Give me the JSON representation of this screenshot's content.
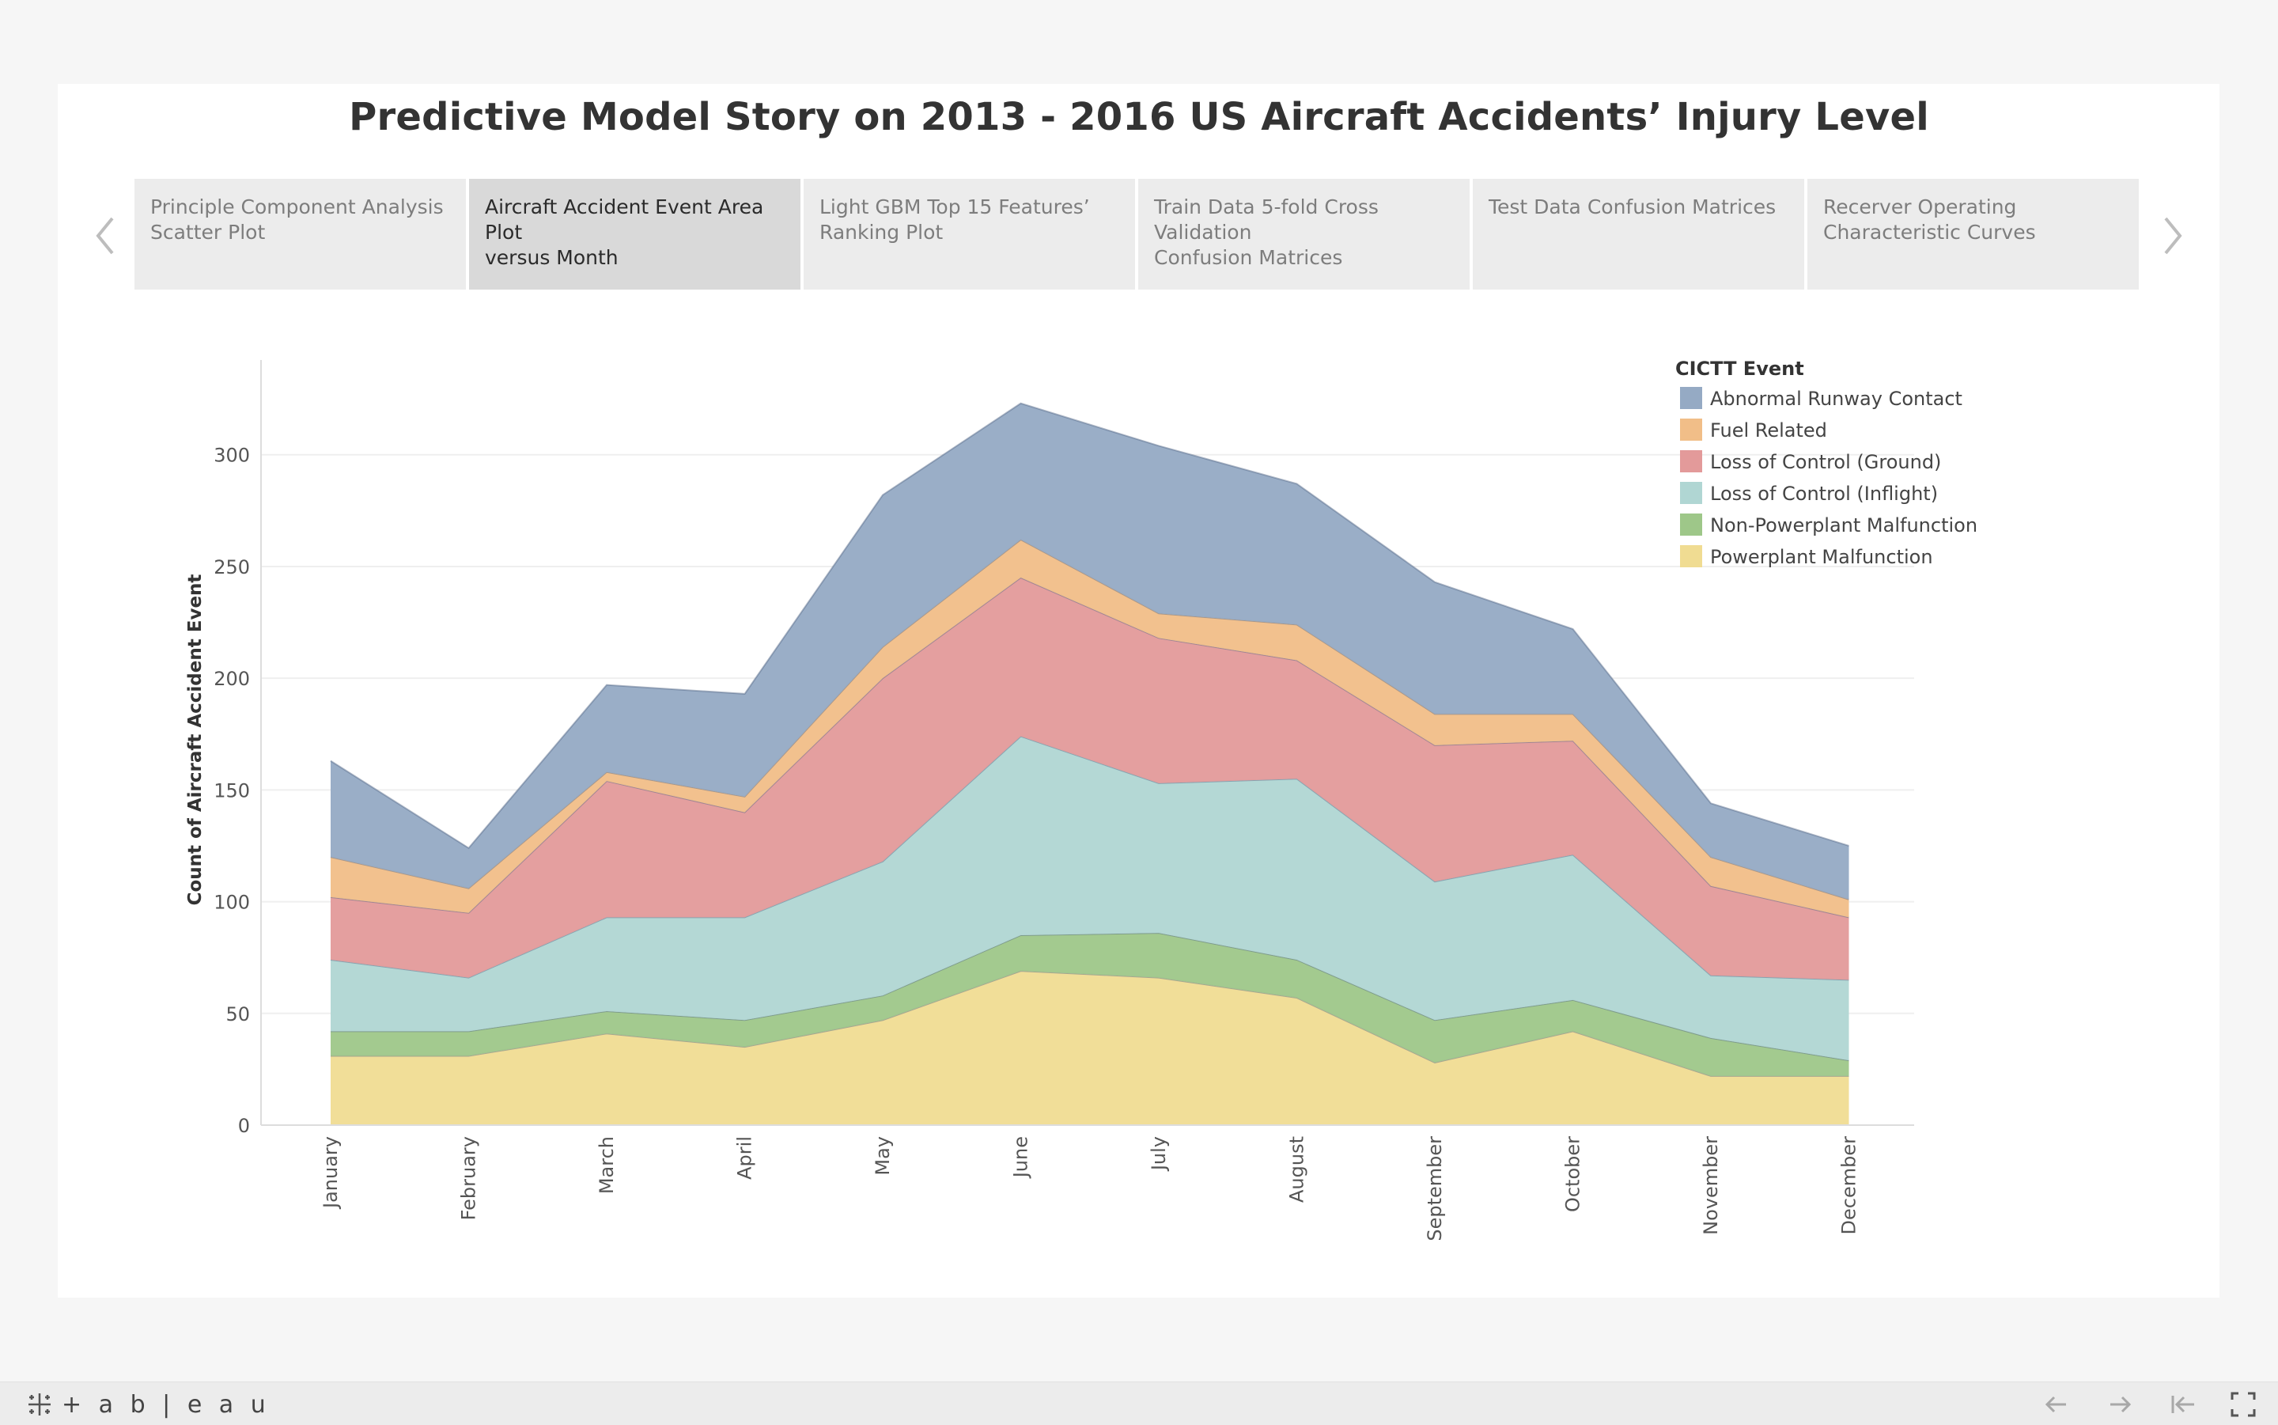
{
  "story": {
    "title": "Predictive Model Story on 2013 - 2016 US Aircraft Accidents’  Injury Level",
    "tabs": [
      {
        "line1": "Principle Component Analysis",
        "line2": "Scatter Plot",
        "active": false
      },
      {
        "line1": "Aircraft Accident Event Area Plot",
        "line2": "versus Month",
        "active": true
      },
      {
        "line1": "Light GBM Top 15 Features’",
        "line2": "Ranking Plot",
        "active": false
      },
      {
        "line1": "Train Data 5-fold Cross Validation",
        "line2": "Confusion Matrices",
        "active": false
      },
      {
        "line1": "Test Data Confusion Matrices",
        "line2": "",
        "active": false
      },
      {
        "line1": "Recerver Operating",
        "line2": "Characteristic Curves",
        "active": false
      }
    ],
    "prev_icon": "chevron-left-icon",
    "next_icon": "chevron-right-icon"
  },
  "chart_data": {
    "type": "area",
    "stacked": true,
    "x": [
      "January",
      "February",
      "March",
      "April",
      "May",
      "June",
      "July",
      "August",
      "September",
      "October",
      "November",
      "December"
    ],
    "ylabel": "Count of Aircraft Accident Event",
    "xlabel": "",
    "ylim": [
      0,
      330
    ],
    "yticks": [
      0,
      50,
      100,
      150,
      200,
      250,
      300
    ],
    "grid": "horizontal",
    "legend": {
      "title": "CICTT Event",
      "position": "top-right"
    },
    "series": [
      {
        "name": "Powerplant Malfunction",
        "color": "#f0dc92",
        "values": [
          31,
          31,
          41,
          35,
          47,
          69,
          66,
          57,
          28,
          42,
          22,
          22
        ]
      },
      {
        "name": "Non-Powerplant Malfunction",
        "color": "#9ec789",
        "values": [
          11,
          11,
          10,
          12,
          11,
          16,
          20,
          17,
          19,
          14,
          17,
          7
        ]
      },
      {
        "name": "Loss of Control (Inflight)",
        "color": "#b0d6d3",
        "values": [
          32,
          24,
          42,
          46,
          60,
          89,
          67,
          81,
          62,
          65,
          28,
          36
        ]
      },
      {
        "name": "Loss of Control (Ground)",
        "color": "#e39a9a",
        "values": [
          28,
          29,
          61,
          47,
          82,
          71,
          65,
          53,
          61,
          51,
          40,
          28
        ]
      },
      {
        "name": "Fuel Related",
        "color": "#f1be88",
        "values": [
          18,
          11,
          4,
          7,
          14,
          17,
          11,
          16,
          14,
          12,
          13,
          8
        ]
      },
      {
        "name": "Abnormal Runway Contact",
        "color": "#95aac4",
        "values": [
          43,
          18,
          39,
          46,
          68,
          61,
          75,
          63,
          59,
          38,
          24,
          24
        ]
      }
    ]
  },
  "colors": {
    "active_tab": "#d9d9d9",
    "inactive_tab": "#ececec",
    "gridline": "#eeeeee"
  },
  "footer": {
    "logo_icon": "tableau-plus-icon",
    "brand": "+ a b | e a u",
    "back_icon": "arrow-left-icon",
    "forward_icon": "arrow-right-icon",
    "first_icon": "skip-to-start-icon",
    "fullscreen_icon": "fullscreen-icon"
  }
}
